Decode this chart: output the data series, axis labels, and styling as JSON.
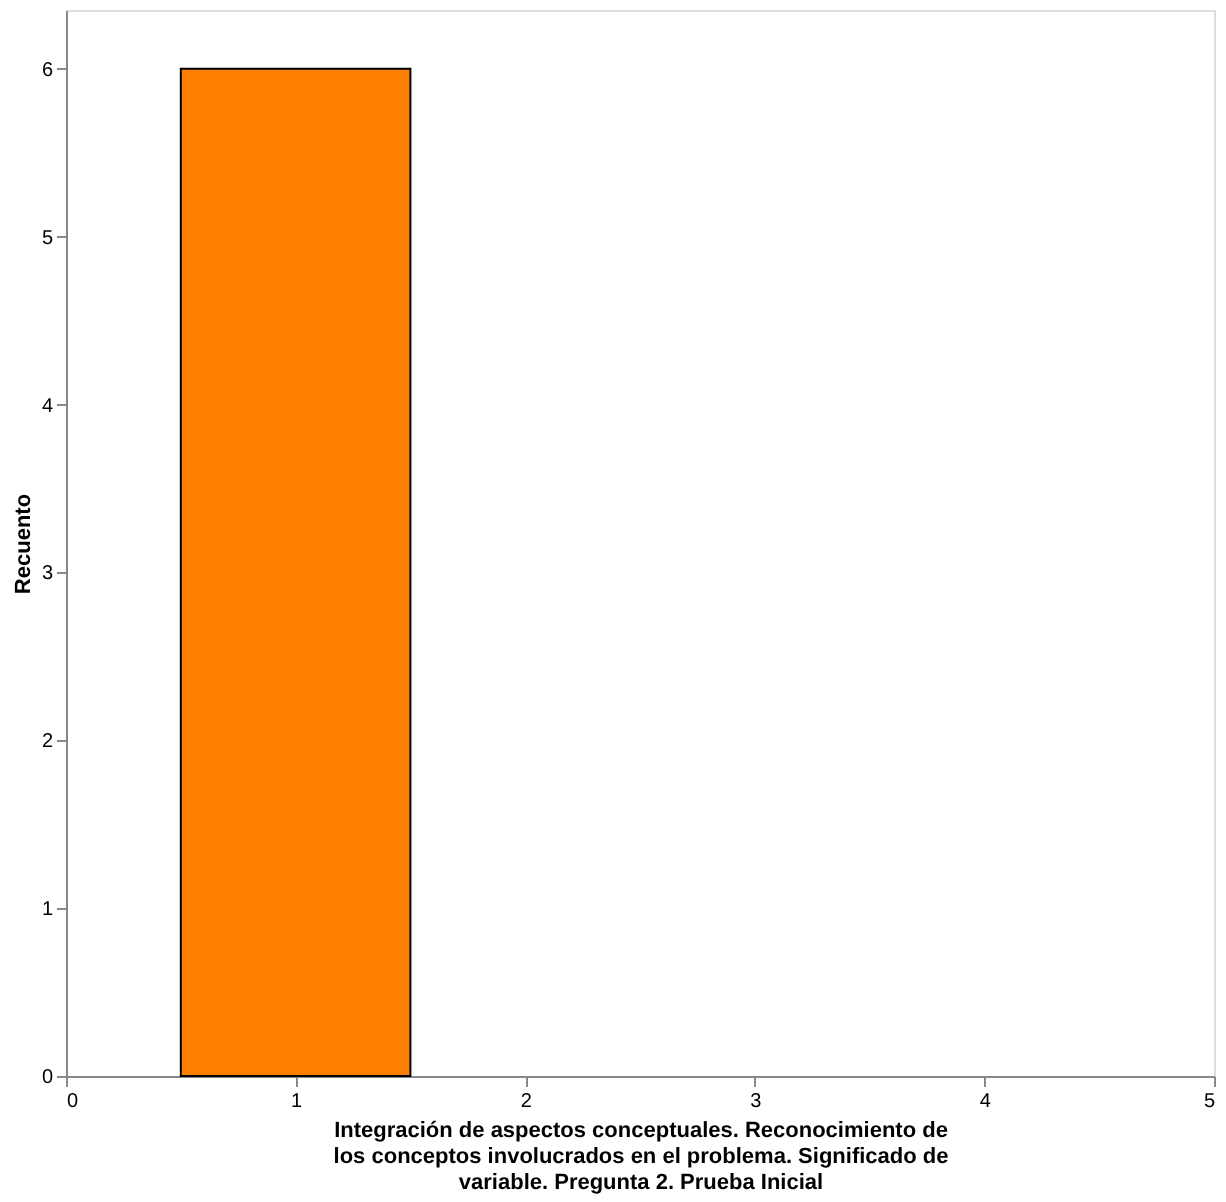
{
  "chart_data": {
    "type": "histogram",
    "xlabel": "Integración de aspectos conceptuales. Reconocimiento de los conceptos involucrados en el problema. Significado de variable. Pregunta 2. Prueba Inicial",
    "ylabel": "Recuento",
    "bins": [
      0.5,
      1.5
    ],
    "values": [
      6
    ],
    "color": "#ff8000",
    "xlim": [
      0,
      5
    ],
    "xticks": [
      0,
      1,
      2,
      3,
      4,
      5
    ],
    "ylim": [
      0,
      6.35
    ],
    "yticks": [
      0,
      1,
      2,
      3,
      4,
      5,
      6
    ],
    "grid": false
  }
}
